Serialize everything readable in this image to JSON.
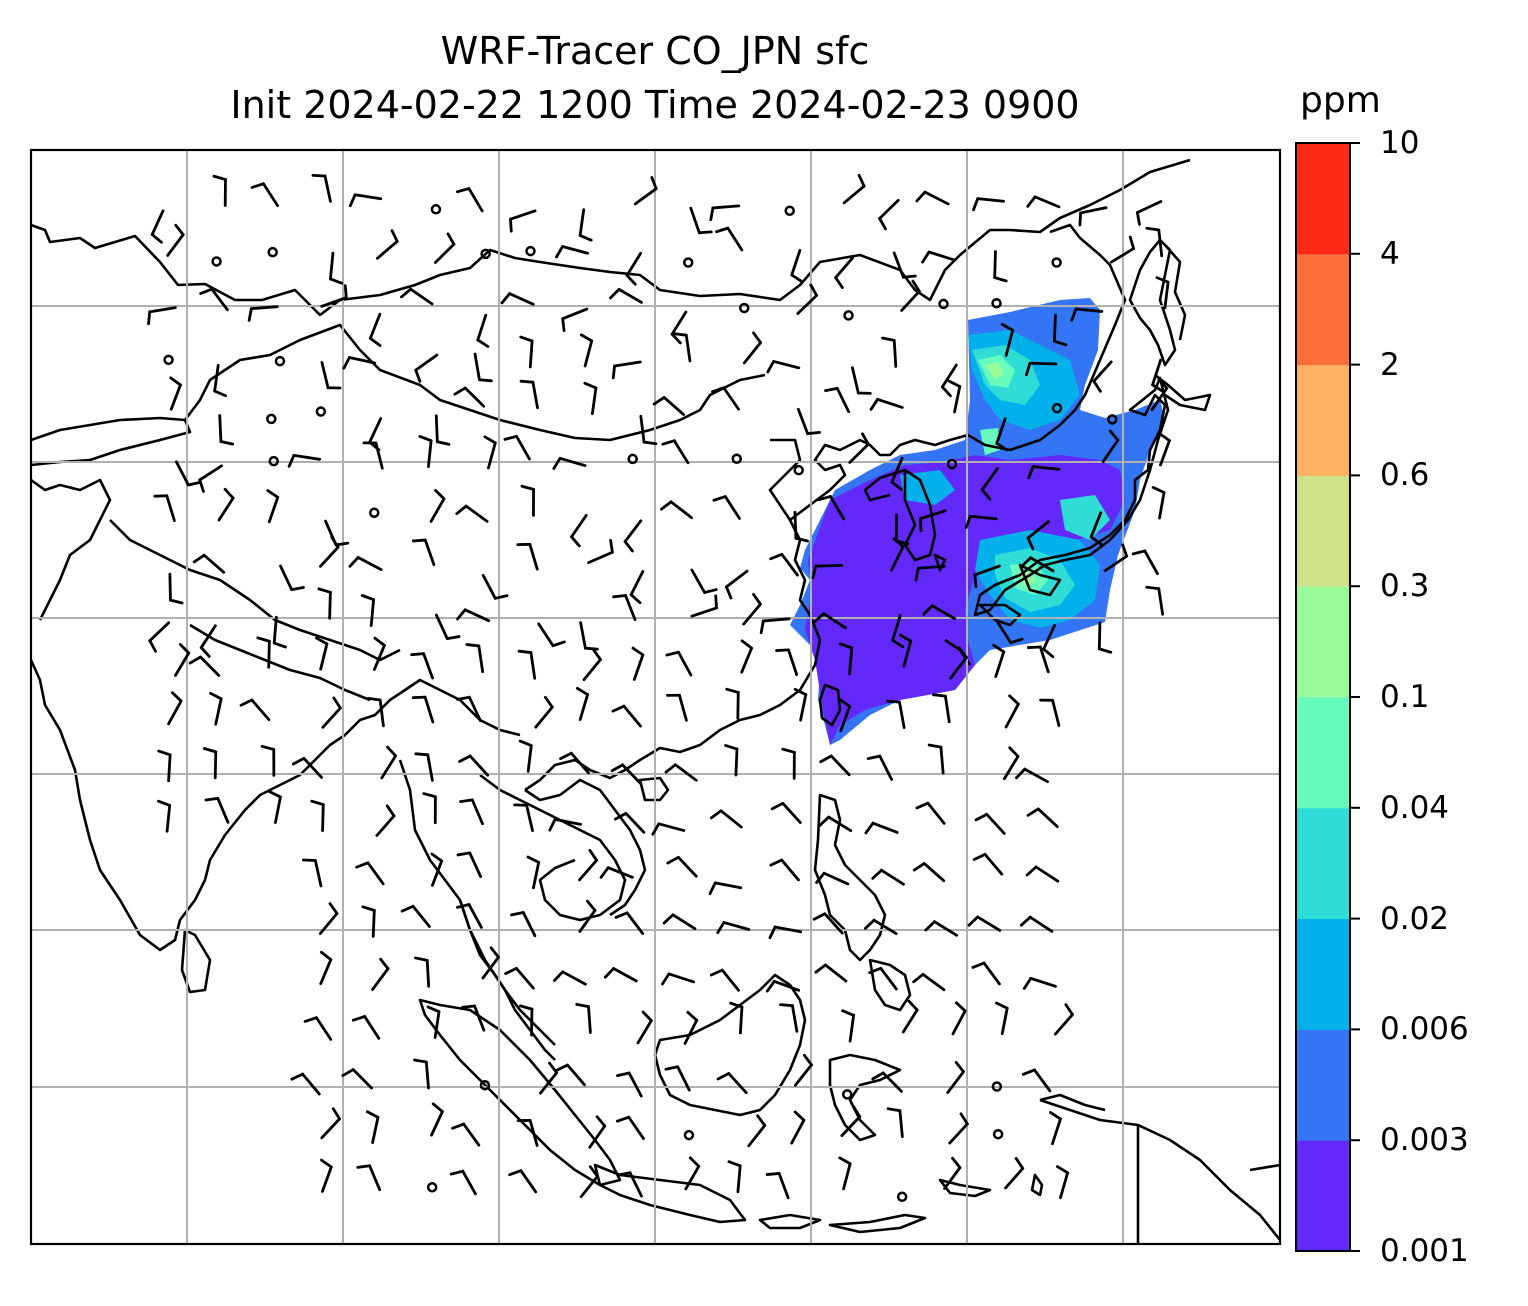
{
  "title": {
    "line1": "WRF-Tracer CO_JPN sfc",
    "line2": "Init 2024-02-22 1200 Time 2024-02-23 0900"
  },
  "colorbar": {
    "unit": "ppm",
    "levels": [
      "0.001",
      "0.003",
      "0.006",
      "0.02",
      "0.04",
      "0.1",
      "0.3",
      "0.6",
      "2",
      "4",
      "10"
    ],
    "colors": [
      "#6329fb",
      "#3375f5",
      "#02b0ec",
      "#30ddd6",
      "#67fbbe",
      "#99fa9a",
      "#cee388",
      "#fcb163",
      "#fe6e3b",
      "#fe2a17"
    ]
  },
  "map": {
    "coastline_color": "#000000",
    "gridline_color": "#b0b0b0",
    "wind_barb_color": "#000000"
  }
}
